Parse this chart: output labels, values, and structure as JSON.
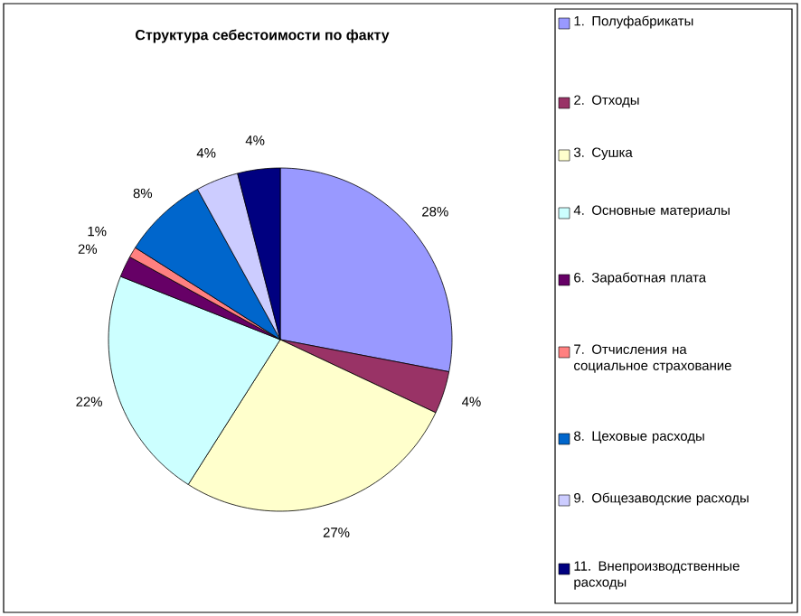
{
  "chart_data": {
    "type": "pie",
    "title": "Структура себестоимости по факту",
    "categories": [
      "1. Полуфабрикаты",
      "2. Отходы",
      "3. Сушка",
      "4. Основные материалы",
      "6. Заработная плата",
      "7. Отчисления на социальное страхование",
      "8. Цеховые расходы",
      "9. Общезаводские расходы",
      "11. Внепроизводственные расходы"
    ],
    "values": [
      28,
      4,
      27,
      22,
      2,
      1,
      8,
      4,
      4
    ],
    "colors": [
      "#9999ff",
      "#993366",
      "#ffffcc",
      "#ccffff",
      "#660066",
      "#ff8080",
      "#0066cc",
      "#ccccff",
      "#000080"
    ],
    "value_labels": [
      "28%",
      "4%",
      "27%",
      "22%",
      "2%",
      "1%",
      "8%",
      "4%",
      "4%"
    ],
    "legend": "right"
  }
}
